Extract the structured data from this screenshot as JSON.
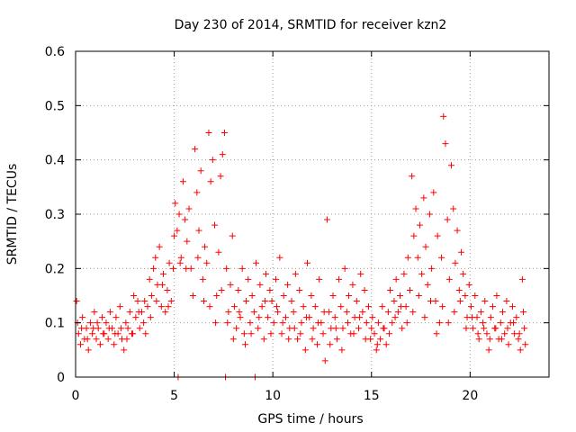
{
  "chart_data": {
    "type": "scatter",
    "title": "Day 230 of 2014, SRMTID for receiver kzn2",
    "xlabel": "GPS time / hours",
    "ylabel": "SRMTID / TECUs",
    "xlim": [
      0,
      24
    ],
    "ylim": [
      0,
      0.6
    ],
    "x_ticks": [
      0,
      5,
      10,
      15,
      20
    ],
    "x_tick_labels": [
      "0",
      "5",
      "10",
      "15",
      "20"
    ],
    "y_ticks": [
      0,
      0.1,
      0.2,
      0.3,
      0.4,
      0.5,
      0.6
    ],
    "y_tick_labels": [
      "0",
      "0.1",
      "0.2",
      "0.3",
      "0.4",
      "0.5",
      "0.6"
    ],
    "grid": true,
    "marker": "+",
    "color": "#ff0000",
    "series": [
      {
        "name": "SRMTID",
        "points": [
          [
            0.05,
            0.14
          ],
          [
            0.15,
            0.08
          ],
          [
            0.25,
            0.06
          ],
          [
            0.35,
            0.11
          ],
          [
            0.45,
            0.07
          ],
          [
            0.55,
            0.09
          ],
          [
            0.65,
            0.05
          ],
          [
            0.75,
            0.1
          ],
          [
            0.85,
            0.08
          ],
          [
            0.95,
            0.12
          ],
          [
            1.05,
            0.07
          ],
          [
            1.15,
            0.09
          ],
          [
            1.25,
            0.06
          ],
          [
            1.35,
            0.11
          ],
          [
            1.45,
            0.08
          ],
          [
            1.55,
            0.1
          ],
          [
            1.65,
            0.07
          ],
          [
            1.75,
            0.12
          ],
          [
            1.85,
            0.09
          ],
          [
            1.95,
            0.06
          ],
          [
            2.05,
            0.11
          ],
          [
            2.15,
            0.08
          ],
          [
            2.25,
            0.13
          ],
          [
            2.35,
            0.07
          ],
          [
            2.45,
            0.05
          ],
          [
            2.55,
            0.1
          ],
          [
            2.65,
            0.09
          ],
          [
            2.75,
            0.12
          ],
          [
            2.85,
            0.08
          ],
          [
            2.95,
            0.15
          ],
          [
            3.05,
            0.11
          ],
          [
            3.15,
            0.14
          ],
          [
            3.25,
            0.09
          ],
          [
            3.35,
            0.12
          ],
          [
            3.45,
            0.1
          ],
          [
            3.55,
            0.08
          ],
          [
            3.65,
            0.13
          ],
          [
            3.75,
            0.18
          ],
          [
            3.85,
            0.15
          ],
          [
            3.95,
            0.2
          ],
          [
            4.05,
            0.22
          ],
          [
            4.15,
            0.17
          ],
          [
            4.25,
            0.24
          ],
          [
            4.35,
            0.13
          ],
          [
            4.45,
            0.19
          ],
          [
            4.55,
            0.12
          ],
          [
            4.65,
            0.16
          ],
          [
            4.75,
            0.21
          ],
          [
            4.85,
            0.14
          ],
          [
            4.95,
            0.2
          ],
          [
            5.05,
            0.32
          ],
          [
            5.15,
            0.27
          ],
          [
            5.25,
            0.3
          ],
          [
            5.35,
            0.22
          ],
          [
            5.45,
            0.36
          ],
          [
            5.55,
            0.29
          ],
          [
            5.65,
            0.25
          ],
          [
            5.75,
            0.31
          ],
          [
            5.85,
            0.2
          ],
          [
            5.95,
            0.15
          ],
          [
            6.05,
            0.42
          ],
          [
            6.15,
            0.34
          ],
          [
            6.25,
            0.27
          ],
          [
            6.35,
            0.38
          ],
          [
            6.45,
            0.18
          ],
          [
            6.55,
            0.24
          ],
          [
            6.65,
            0.21
          ],
          [
            6.75,
            0.45
          ],
          [
            6.85,
            0.36
          ],
          [
            6.95,
            0.4
          ],
          [
            7.05,
            0.28
          ],
          [
            7.15,
            0.15
          ],
          [
            7.25,
            0.23
          ],
          [
            7.35,
            0.37
          ],
          [
            7.45,
            0.41
          ],
          [
            7.55,
            0.45
          ],
          [
            7.65,
            0.2
          ],
          [
            7.75,
            0.12
          ],
          [
            7.85,
            0.17
          ],
          [
            7.95,
            0.26
          ],
          [
            8.05,
            0.13
          ],
          [
            8.15,
            0.09
          ],
          [
            8.25,
            0.16
          ],
          [
            8.35,
            0.11
          ],
          [
            8.45,
            0.2
          ],
          [
            8.55,
            0.08
          ],
          [
            8.65,
            0.14
          ],
          [
            8.75,
            0.18
          ],
          [
            8.85,
            0.1
          ],
          [
            8.95,
            0.15
          ],
          [
            9.05,
            0.12
          ],
          [
            9.15,
            0.21
          ],
          [
            9.25,
            0.09
          ],
          [
            9.35,
            0.17
          ],
          [
            9.45,
            0.13
          ],
          [
            9.55,
            0.07
          ],
          [
            9.65,
            0.19
          ],
          [
            9.75,
            0.11
          ],
          [
            9.85,
            0.16
          ],
          [
            9.95,
            0.14
          ],
          [
            10.05,
            0.1
          ],
          [
            10.15,
            0.18
          ],
          [
            10.25,
            0.12
          ],
          [
            10.35,
            0.22
          ],
          [
            10.45,
            0.08
          ],
          [
            10.55,
            0.15
          ],
          [
            10.65,
            0.11
          ],
          [
            10.75,
            0.17
          ],
          [
            10.85,
            0.09
          ],
          [
            10.95,
            0.14
          ],
          [
            11.05,
            0.12
          ],
          [
            11.15,
            0.19
          ],
          [
            11.25,
            0.07
          ],
          [
            11.35,
            0.16
          ],
          [
            11.45,
            0.1
          ],
          [
            11.55,
            0.13
          ],
          [
            11.65,
            0.05
          ],
          [
            11.75,
            0.21
          ],
          [
            11.85,
            0.11
          ],
          [
            11.95,
            0.15
          ],
          [
            12.05,
            0.09
          ],
          [
            12.15,
            0.13
          ],
          [
            12.25,
            0.06
          ],
          [
            12.35,
            0.18
          ],
          [
            12.45,
            0.1
          ],
          [
            12.55,
            0.08
          ],
          [
            12.65,
            0.03
          ],
          [
            12.75,
            0.29
          ],
          [
            12.85,
            0.12
          ],
          [
            12.95,
            0.09
          ],
          [
            13.05,
            0.15
          ],
          [
            13.15,
            0.11
          ],
          [
            13.25,
            0.07
          ],
          [
            13.35,
            0.18
          ],
          [
            13.45,
            0.13
          ],
          [
            13.55,
            0.09
          ],
          [
            13.65,
            0.2
          ],
          [
            13.75,
            0.12
          ],
          [
            13.85,
            0.15
          ],
          [
            13.95,
            0.08
          ],
          [
            14.05,
            0.17
          ],
          [
            14.15,
            0.11
          ],
          [
            14.25,
            0.14
          ],
          [
            14.35,
            0.09
          ],
          [
            14.45,
            0.19
          ],
          [
            14.55,
            0.12
          ],
          [
            14.65,
            0.16
          ],
          [
            14.75,
            0.1
          ],
          [
            14.85,
            0.13
          ],
          [
            14.95,
            0.07
          ],
          [
            15.05,
            0.11
          ],
          [
            15.15,
            0.08
          ],
          [
            15.25,
            0.05
          ],
          [
            15.35,
            0.1
          ],
          [
            15.45,
            0.07
          ],
          [
            15.55,
            0.13
          ],
          [
            15.65,
            0.09
          ],
          [
            15.75,
            0.06
          ],
          [
            15.85,
            0.12
          ],
          [
            15.95,
            0.16
          ],
          [
            16.05,
            0.1
          ],
          [
            16.15,
            0.14
          ],
          [
            16.25,
            0.18
          ],
          [
            16.35,
            0.12
          ],
          [
            16.45,
            0.15
          ],
          [
            16.55,
            0.09
          ],
          [
            16.65,
            0.19
          ],
          [
            16.75,
            0.13
          ],
          [
            16.85,
            0.22
          ],
          [
            16.95,
            0.16
          ],
          [
            17.05,
            0.37
          ],
          [
            17.15,
            0.26
          ],
          [
            17.25,
            0.31
          ],
          [
            17.35,
            0.22
          ],
          [
            17.45,
            0.28
          ],
          [
            17.55,
            0.19
          ],
          [
            17.65,
            0.33
          ],
          [
            17.75,
            0.24
          ],
          [
            17.85,
            0.17
          ],
          [
            17.95,
            0.3
          ],
          [
            18.05,
            0.2
          ],
          [
            18.15,
            0.34
          ],
          [
            18.25,
            0.14
          ],
          [
            18.35,
            0.26
          ],
          [
            18.45,
            0.1
          ],
          [
            18.55,
            0.22
          ],
          [
            18.65,
            0.48
          ],
          [
            18.75,
            0.43
          ],
          [
            18.85,
            0.29
          ],
          [
            18.95,
            0.18
          ],
          [
            19.05,
            0.39
          ],
          [
            19.15,
            0.31
          ],
          [
            19.25,
            0.21
          ],
          [
            19.35,
            0.27
          ],
          [
            19.45,
            0.16
          ],
          [
            19.55,
            0.23
          ],
          [
            19.65,
            0.19
          ],
          [
            19.75,
            0.15
          ],
          [
            19.85,
            0.11
          ],
          [
            19.95,
            0.17
          ],
          [
            20.05,
            0.13
          ],
          [
            20.15,
            0.09
          ],
          [
            20.25,
            0.15
          ],
          [
            20.35,
            0.11
          ],
          [
            20.45,
            0.07
          ],
          [
            20.55,
            0.12
          ],
          [
            20.65,
            0.1
          ],
          [
            20.75,
            0.14
          ],
          [
            20.85,
            0.08
          ],
          [
            20.95,
            0.05
          ],
          [
            21.05,
            0.11
          ],
          [
            21.15,
            0.13
          ],
          [
            21.25,
            0.09
          ],
          [
            21.35,
            0.15
          ],
          [
            21.45,
            0.07
          ],
          [
            21.55,
            0.1
          ],
          [
            21.65,
            0.12
          ],
          [
            21.75,
            0.08
          ],
          [
            21.85,
            0.14
          ],
          [
            21.95,
            0.06
          ],
          [
            22.05,
            0.1
          ],
          [
            22.15,
            0.13
          ],
          [
            22.25,
            0.08
          ],
          [
            22.35,
            0.11
          ],
          [
            22.45,
            0.07
          ],
          [
            22.55,
            0.05
          ],
          [
            22.65,
            0.18
          ],
          [
            22.7,
            0.12
          ],
          [
            22.75,
            0.09
          ],
          [
            22.8,
            0.06
          ],
          [
            0.1,
            0.1
          ],
          [
            0.3,
            0.09
          ],
          [
            0.6,
            0.07
          ],
          [
            0.9,
            0.09
          ],
          [
            1.1,
            0.1
          ],
          [
            1.4,
            0.08
          ],
          [
            1.7,
            0.09
          ],
          [
            2.0,
            0.08
          ],
          [
            2.3,
            0.09
          ],
          [
            2.6,
            0.07
          ],
          [
            2.9,
            0.08
          ],
          [
            3.2,
            0.12
          ],
          [
            3.5,
            0.14
          ],
          [
            3.8,
            0.11
          ],
          [
            4.1,
            0.14
          ],
          [
            4.4,
            0.17
          ],
          [
            4.7,
            0.13
          ],
          [
            5.0,
            0.26
          ],
          [
            5.3,
            0.21
          ],
          [
            5.6,
            0.2
          ],
          [
            6.2,
            0.22
          ],
          [
            6.5,
            0.14
          ],
          [
            6.8,
            0.13
          ],
          [
            7.1,
            0.1
          ],
          [
            7.4,
            0.16
          ],
          [
            7.7,
            0.1
          ],
          [
            8.0,
            0.07
          ],
          [
            8.3,
            0.12
          ],
          [
            8.6,
            0.06
          ],
          [
            8.9,
            0.08
          ],
          [
            9.3,
            0.11
          ],
          [
            9.6,
            0.14
          ],
          [
            9.9,
            0.08
          ],
          [
            10.2,
            0.13
          ],
          [
            10.5,
            0.1
          ],
          [
            10.8,
            0.07
          ],
          [
            11.1,
            0.09
          ],
          [
            11.4,
            0.08
          ],
          [
            11.7,
            0.11
          ],
          [
            12.0,
            0.07
          ],
          [
            12.3,
            0.1
          ],
          [
            12.6,
            0.12
          ],
          [
            12.9,
            0.06
          ],
          [
            13.2,
            0.09
          ],
          [
            13.5,
            0.05
          ],
          [
            13.8,
            0.1
          ],
          [
            14.1,
            0.08
          ],
          [
            14.4,
            0.11
          ],
          [
            14.7,
            0.07
          ],
          [
            15.0,
            0.09
          ],
          [
            15.3,
            0.06
          ],
          [
            15.6,
            0.09
          ],
          [
            15.9,
            0.08
          ],
          [
            16.2,
            0.11
          ],
          [
            16.5,
            0.13
          ],
          [
            16.8,
            0.1
          ],
          [
            17.1,
            0.12
          ],
          [
            17.4,
            0.15
          ],
          [
            17.7,
            0.11
          ],
          [
            18.0,
            0.14
          ],
          [
            18.3,
            0.08
          ],
          [
            18.6,
            0.13
          ],
          [
            18.9,
            0.1
          ],
          [
            19.2,
            0.12
          ],
          [
            19.5,
            0.14
          ],
          [
            19.8,
            0.09
          ],
          [
            20.1,
            0.11
          ],
          [
            20.4,
            0.08
          ],
          [
            20.7,
            0.09
          ],
          [
            21.0,
            0.07
          ],
          [
            21.3,
            0.09
          ],
          [
            21.6,
            0.07
          ],
          [
            21.9,
            0.09
          ],
          [
            22.2,
            0.1
          ],
          [
            22.5,
            0.08
          ],
          [
            5.2,
            0.0
          ],
          [
            7.6,
            0.0
          ],
          [
            9.1,
            0.0
          ]
        ]
      }
    ],
    "plot_frame_color": "#000000",
    "grid_color": "#a0a0a0"
  }
}
